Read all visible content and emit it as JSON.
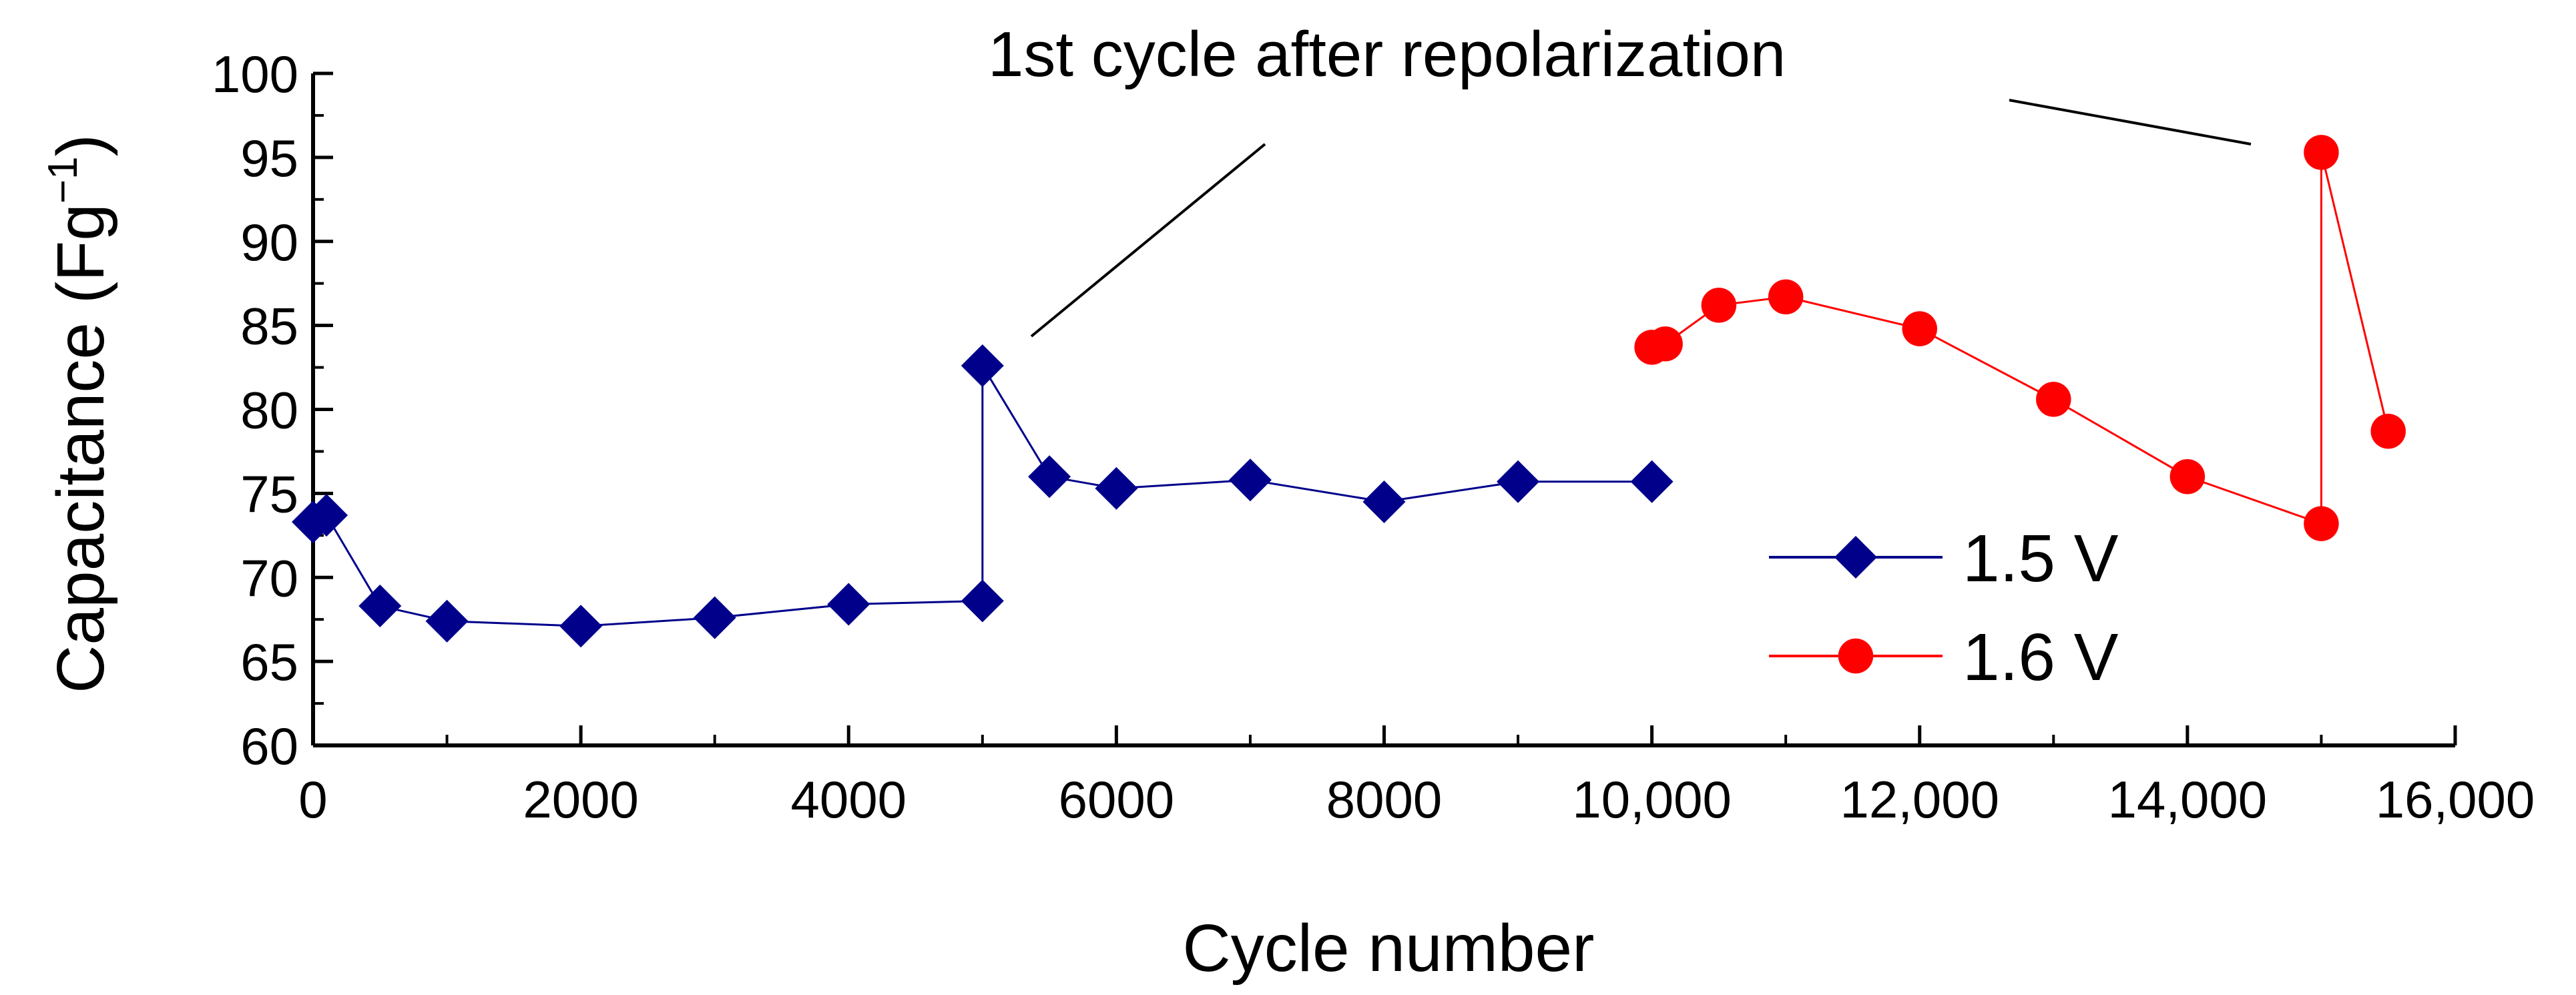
{
  "chart_data": {
    "type": "line",
    "title": "",
    "xlabel": "Cycle number",
    "ylabel": {
      "main": "Capacitance (Fg",
      "superscript": "−1",
      "close": ")"
    },
    "xlim": [
      0,
      16000
    ],
    "ylim": [
      60,
      100
    ],
    "x_ticks": [
      0,
      2000,
      4000,
      6000,
      8000,
      10000,
      12000,
      14000,
      16000
    ],
    "x_tick_labels": [
      "0",
      "2000",
      "4000",
      "6000",
      "8000",
      "10,000",
      "12,000",
      "14,000",
      "16,000"
    ],
    "y_ticks": [
      60,
      65,
      70,
      75,
      80,
      85,
      90,
      95,
      100
    ],
    "y_tick_labels": [
      "60",
      "65",
      "70",
      "75",
      "80",
      "85",
      "90",
      "95",
      "100"
    ],
    "grid": false,
    "legend_position": "bottom-right",
    "annotation": {
      "text": "1st cycle after repolarization",
      "targets": [
        [
          5000,
          82.6
        ],
        [
          15000,
          95.3
        ]
      ]
    },
    "series": [
      {
        "name": "1.5 V",
        "color": "#00008B",
        "marker": "diamond",
        "x": [
          0,
          100,
          500,
          1000,
          2000,
          3000,
          4000,
          5000,
          5000,
          5500,
          6000,
          7000,
          8000,
          9000,
          10000
        ],
        "y": [
          73.3,
          73.7,
          68.3,
          67.4,
          67.1,
          67.6,
          68.4,
          68.6,
          82.6,
          76.0,
          75.3,
          75.8,
          74.5,
          75.7,
          75.7
        ]
      },
      {
        "name": "1.6 V",
        "color": "#FF0000",
        "marker": "circle",
        "x": [
          10000,
          10100,
          10500,
          11000,
          12000,
          13000,
          14000,
          15000,
          15000,
          15500
        ],
        "y": [
          83.7,
          83.9,
          86.2,
          86.7,
          84.8,
          80.6,
          76.0,
          73.2,
          95.3,
          78.7
        ]
      }
    ]
  }
}
